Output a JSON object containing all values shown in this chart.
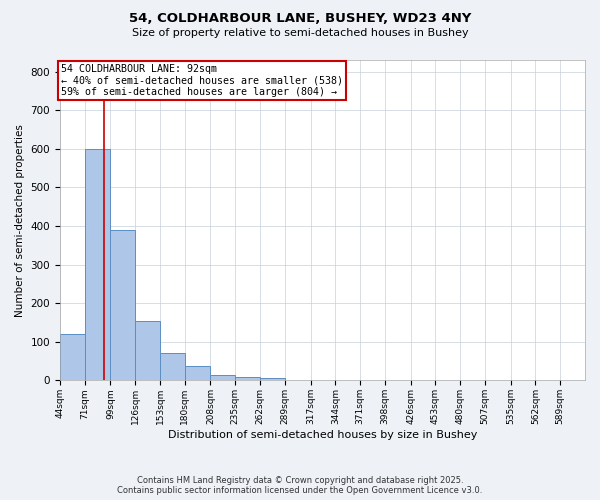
{
  "title_line1": "54, COLDHARBOUR LANE, BUSHEY, WD23 4NY",
  "title_line2": "Size of property relative to semi-detached houses in Bushey",
  "xlabel": "Distribution of semi-detached houses by size in Bushey",
  "ylabel": "Number of semi-detached properties",
  "bin_labels": [
    "44sqm",
    "71sqm",
    "99sqm",
    "126sqm",
    "153sqm",
    "180sqm",
    "208sqm",
    "235sqm",
    "262sqm",
    "289sqm",
    "317sqm",
    "344sqm",
    "371sqm",
    "398sqm",
    "426sqm",
    "453sqm",
    "480sqm",
    "507sqm",
    "535sqm",
    "562sqm",
    "589sqm"
  ],
  "bin_edges": [
    44,
    71,
    99,
    126,
    153,
    180,
    208,
    235,
    262,
    289,
    317,
    344,
    371,
    398,
    426,
    453,
    480,
    507,
    535,
    562,
    589,
    616
  ],
  "bar_heights": [
    120,
    600,
    390,
    155,
    70,
    38,
    15,
    8,
    6,
    0,
    0,
    0,
    0,
    0,
    0,
    0,
    0,
    0,
    0,
    0,
    0
  ],
  "bar_color": "#aec6e8",
  "bar_edge_color": "#5a8fc4",
  "property_size": 92,
  "vline_color": "#cc0000",
  "annotation_line1": "54 COLDHARBOUR LANE: 92sqm",
  "annotation_line2": "← 40% of semi-detached houses are smaller (538)",
  "annotation_line3": "59% of semi-detached houses are larger (804) →",
  "annotation_box_color": "#cc0000",
  "ylim": [
    0,
    830
  ],
  "yticks": [
    0,
    100,
    200,
    300,
    400,
    500,
    600,
    700,
    800
  ],
  "background_color": "#eef2f7",
  "plot_background": "#ffffff",
  "grid_color": "#c8d0dc",
  "footer_line1": "Contains HM Land Registry data © Crown copyright and database right 2025.",
  "footer_line2": "Contains public sector information licensed under the Open Government Licence v3.0."
}
